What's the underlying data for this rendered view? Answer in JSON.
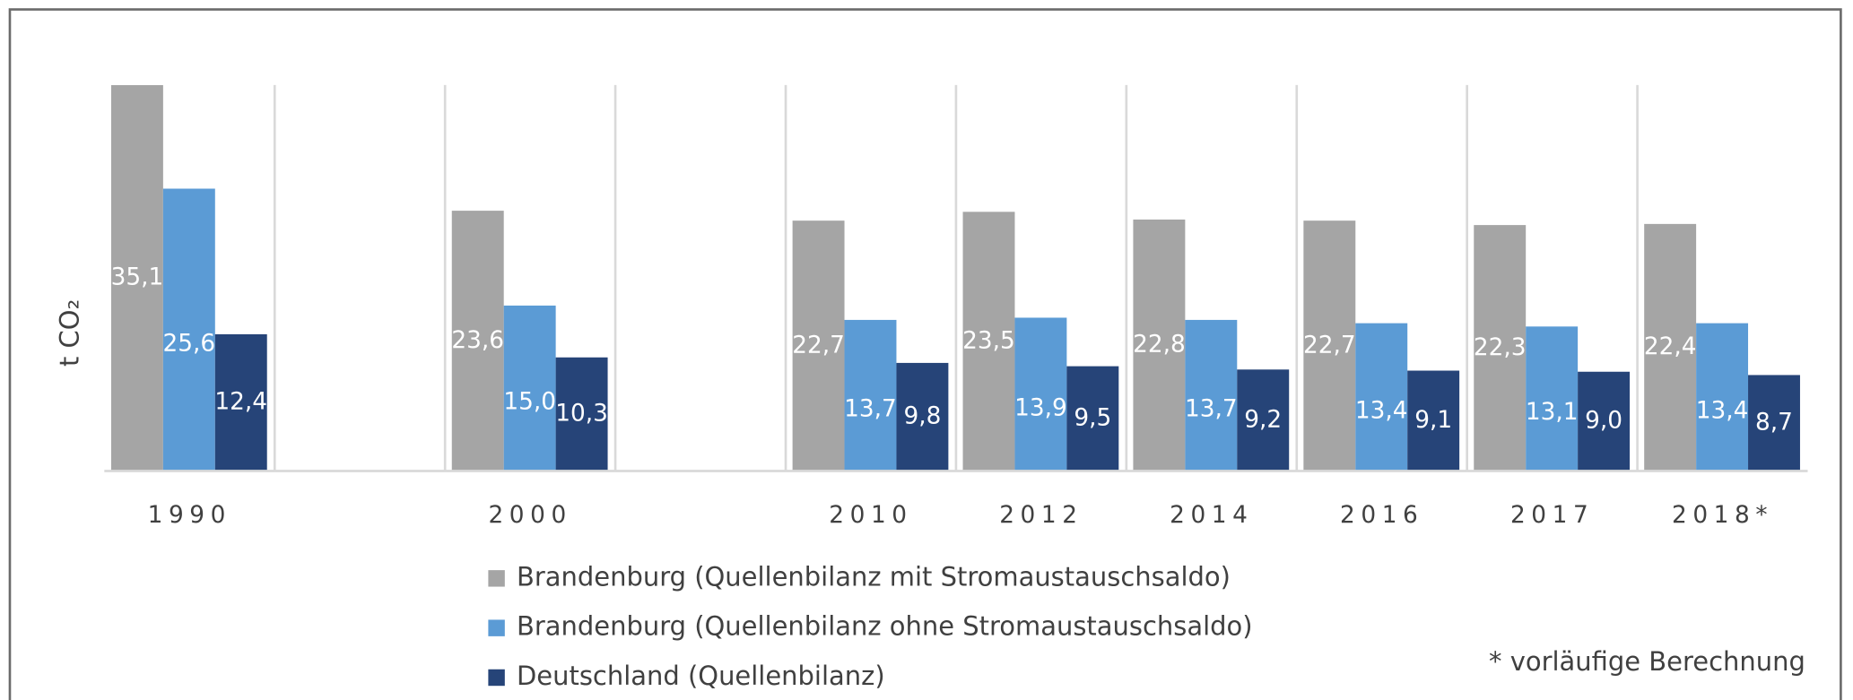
{
  "chart_data": {
    "type": "bar",
    "y_label": "t CO₂",
    "categories": [
      "1990",
      null,
      "2000",
      null,
      "2010",
      "2012",
      "2014",
      "2016",
      "2017",
      "2018*"
    ],
    "series": [
      {
        "name": "Brandenburg (Quellenbilanz mit Stromaustauschsaldo)",
        "color": "#a5a5a5",
        "values": [
          35.1,
          null,
          23.6,
          null,
          22.7,
          23.5,
          22.8,
          22.7,
          22.3,
          22.4
        ],
        "value_labels": [
          "35,1",
          null,
          "23,6",
          null,
          "22,7",
          "23,5",
          "22,8",
          "22,7",
          "22,3",
          "22,4"
        ]
      },
      {
        "name": "Brandenburg (Quellenbilanz ohne Stromaustauschsaldo)",
        "color": "#5b9bd5",
        "values": [
          25.6,
          null,
          15.0,
          null,
          13.7,
          13.9,
          13.7,
          13.4,
          13.1,
          13.4
        ],
        "value_labels": [
          "25,6",
          null,
          "15,0",
          null,
          "13,7",
          "13,9",
          "13,7",
          "13,4",
          "13,1",
          "13,4"
        ]
      },
      {
        "name": "Deutschland (Quellenbilanz)",
        "color": "#264478",
        "values": [
          12.4,
          null,
          10.3,
          null,
          9.8,
          9.5,
          9.2,
          9.1,
          9.0,
          8.7
        ],
        "value_labels": [
          "12,4",
          null,
          "10,3",
          null,
          "9,8",
          "9,5",
          "9,2",
          "9,1",
          "9,0",
          "8,7"
        ]
      }
    ],
    "ylim": [
      0,
      35
    ],
    "note": "* vorläufige Berechnung"
  }
}
